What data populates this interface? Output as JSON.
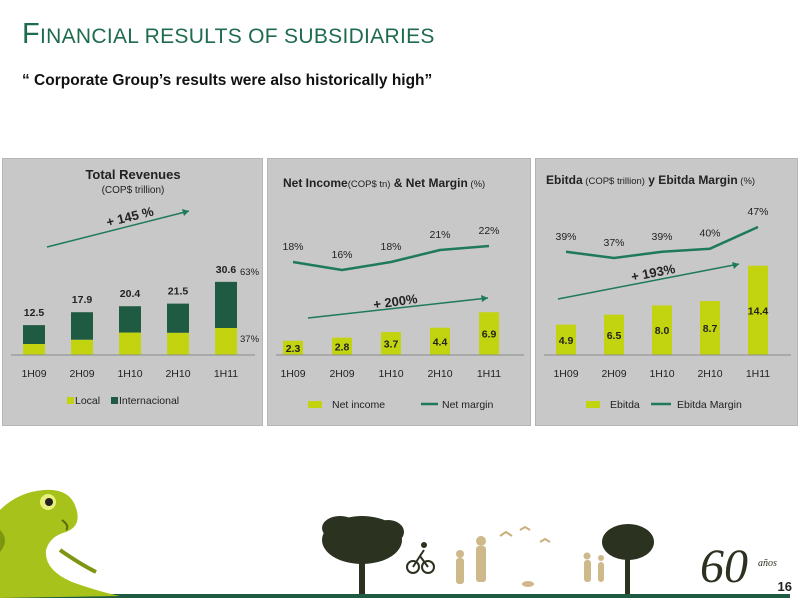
{
  "slide": {
    "title_cap": "F",
    "title_rest": "INANCIAL RESULTS  OF SUBSIDIARIES",
    "subtitle": "“ Corporate Group’s results were also historically high”",
    "page_number": "16",
    "logo_text": "60",
    "logo_small": "años"
  },
  "colors": {
    "lime": "#c2d310",
    "dark_green": "#1f5a42",
    "title_green": "#1e6b4e",
    "panel_bg": "#c8c8c8"
  },
  "chart_data": [
    {
      "type": "bar",
      "stacked": true,
      "title": "Total Revenues",
      "subtitle": "(COP$ trillion)",
      "categories": [
        "1H09",
        "2H09",
        "1H10",
        "2H10",
        "1H11"
      ],
      "series": [
        {
          "name": "Local",
          "values": [
            4.6,
            6.4,
            9.4,
            9.3,
            11.3
          ]
        },
        {
          "name": "Internacional",
          "values": [
            7.9,
            11.5,
            11.0,
            12.2,
            19.3
          ]
        }
      ],
      "totals": [
        "12.5",
        "17.9",
        "20.4",
        "21.5",
        "30.6"
      ],
      "annotations": {
        "growth": "+ 145 %",
        "pct_int": "63%",
        "pct_local": "37%"
      },
      "ylim": [
        0,
        32
      ],
      "legend": "bottom"
    },
    {
      "type": "bar+line",
      "title_bold1": "Net Income",
      "title_unit1": "(COP$ tn)",
      "title_bold2": " & Net Margin",
      "title_unit2": " (%)",
      "categories": [
        "1H09",
        "2H09",
        "1H10",
        "2H10",
        "1H11"
      ],
      "series": [
        {
          "name": "Net income",
          "values": [
            2.3,
            2.8,
            3.7,
            4.4,
            6.9
          ],
          "labels": [
            "2.3",
            "2.8",
            "3.7",
            "4.4",
            "6.9"
          ]
        },
        {
          "name": "Net margin",
          "values": [
            18,
            16,
            18,
            21,
            22
          ],
          "labels": [
            "18%",
            "16%",
            "18%",
            "21%",
            "22%"
          ]
        }
      ],
      "annotations": {
        "growth": "+ 200%"
      },
      "legend": "bottom"
    },
    {
      "type": "bar+line",
      "title_bold1": "Ebitda",
      "title_unit1": " (COP$ trillion)",
      "title_bold2": " y Ebitda Margin",
      "title_unit2": " (%)",
      "categories": [
        "1H09",
        "2H09",
        "1H10",
        "2H10",
        "1H11"
      ],
      "series": [
        {
          "name": "Ebitda",
          "values": [
            4.9,
            6.5,
            8.0,
            8.7,
            14.4
          ],
          "labels": [
            "4.9",
            "6.5",
            "8.0",
            "8.7",
            "14.4"
          ]
        },
        {
          "name": "Ebitda Margin",
          "values": [
            39,
            37,
            39,
            40,
            47
          ],
          "labels": [
            "39%",
            "37%",
            "39%",
            "40%",
            "47%"
          ]
        }
      ],
      "annotations": {
        "growth": "+ 193%"
      },
      "legend": "bottom"
    }
  ]
}
